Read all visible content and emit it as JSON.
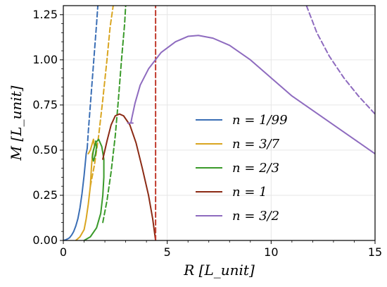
{
  "chart_data": {
    "type": "line",
    "xlabel": "R [L_unit]",
    "ylabel": "M [L_unit]",
    "xlim": [
      0,
      15
    ],
    "ylim": [
      0,
      1.3
    ],
    "xticks": [
      0,
      5,
      10,
      15
    ],
    "xtick_labels": [
      "0",
      "5",
      "10",
      "15"
    ],
    "yticks": [
      0.0,
      0.25,
      0.5,
      0.75,
      1.0,
      1.25
    ],
    "ytick_labels": [
      "0.00",
      "0.25",
      "0.50",
      "0.75",
      "1.00",
      "1.25"
    ],
    "grid": true,
    "legend_position": "center-right",
    "series": [
      {
        "name": "n = 1/99",
        "color": "#3a6eb5",
        "style": "solid",
        "points": [
          [
            0.0,
            0.0
          ],
          [
            0.1,
            0.003
          ],
          [
            0.2,
            0.008
          ],
          [
            0.3,
            0.015
          ],
          [
            0.4,
            0.03
          ],
          [
            0.5,
            0.05
          ],
          [
            0.6,
            0.08
          ],
          [
            0.7,
            0.12
          ],
          [
            0.8,
            0.18
          ],
          [
            0.9,
            0.26
          ],
          [
            1.0,
            0.36
          ],
          [
            1.05,
            0.42
          ],
          [
            1.1,
            0.48
          ],
          [
            1.15,
            0.51
          ]
        ]
      },
      {
        "name": "n = 1/99",
        "color": "#3a6eb5",
        "style": "dashed",
        "points": [
          [
            1.15,
            0.51
          ],
          [
            1.2,
            0.6
          ],
          [
            1.3,
            0.75
          ],
          [
            1.4,
            0.9
          ],
          [
            1.5,
            1.05
          ],
          [
            1.6,
            1.2
          ],
          [
            1.66,
            1.3
          ]
        ]
      },
      {
        "name": "n = 3/7",
        "color": "#d9a520",
        "style": "solid",
        "points": [
          [
            0.6,
            0.0
          ],
          [
            0.8,
            0.02
          ],
          [
            1.0,
            0.06
          ],
          [
            1.1,
            0.12
          ],
          [
            1.2,
            0.2
          ],
          [
            1.3,
            0.3
          ],
          [
            1.35,
            0.4
          ],
          [
            1.4,
            0.48
          ],
          [
            1.5,
            0.52
          ],
          [
            1.45,
            0.56
          ],
          [
            1.3,
            0.5
          ],
          [
            1.2,
            0.48
          ]
        ]
      },
      {
        "name": "n = 3/7",
        "color": "#d9a520",
        "style": "dashed",
        "points": [
          [
            1.3,
            0.3
          ],
          [
            1.5,
            0.42
          ],
          [
            1.7,
            0.58
          ],
          [
            1.9,
            0.78
          ],
          [
            2.1,
            1.0
          ],
          [
            2.25,
            1.18
          ],
          [
            2.4,
            1.3
          ]
        ]
      },
      {
        "name": "n = 2/3",
        "color": "#3a9a2a",
        "style": "solid",
        "points": [
          [
            1.0,
            0.0
          ],
          [
            1.3,
            0.02
          ],
          [
            1.6,
            0.07
          ],
          [
            1.8,
            0.15
          ],
          [
            1.9,
            0.25
          ],
          [
            1.95,
            0.35
          ],
          [
            1.95,
            0.45
          ],
          [
            1.85,
            0.52
          ],
          [
            1.7,
            0.56
          ],
          [
            1.55,
            0.54
          ],
          [
            1.45,
            0.5
          ],
          [
            1.4,
            0.46
          ],
          [
            1.45,
            0.44
          ],
          [
            1.55,
            0.48
          ],
          [
            1.6,
            0.52
          ],
          [
            1.55,
            0.55
          ]
        ]
      },
      {
        "name": "n = 2/3",
        "color": "#3a9a2a",
        "style": "dashed",
        "points": [
          [
            1.9,
            0.1
          ],
          [
            2.1,
            0.22
          ],
          [
            2.3,
            0.38
          ],
          [
            2.5,
            0.58
          ],
          [
            2.65,
            0.78
          ],
          [
            2.8,
            1.0
          ],
          [
            2.95,
            1.2
          ],
          [
            3.0,
            1.3
          ]
        ]
      },
      {
        "name": "n = 1",
        "color": "#8b2a14",
        "style": "solid",
        "points": [
          [
            4.44,
            0.0
          ],
          [
            4.3,
            0.12
          ],
          [
            4.1,
            0.25
          ],
          [
            3.8,
            0.4
          ],
          [
            3.5,
            0.54
          ],
          [
            3.2,
            0.64
          ],
          [
            2.9,
            0.69
          ],
          [
            2.7,
            0.7
          ],
          [
            2.5,
            0.69
          ],
          [
            2.3,
            0.64
          ],
          [
            2.1,
            0.55
          ],
          [
            1.9,
            0.45
          ]
        ]
      },
      {
        "name": "n = 1",
        "color": "#c0392b",
        "style": "dashed",
        "points": [
          [
            4.44,
            0.0
          ],
          [
            4.44,
            1.3
          ]
        ]
      },
      {
        "name": "n = 3/2",
        "color": "#8e6bbf",
        "style": "solid",
        "points": [
          [
            3.25,
            0.65
          ],
          [
            3.3,
            0.68
          ],
          [
            3.45,
            0.76
          ],
          [
            3.7,
            0.86
          ],
          [
            4.1,
            0.95
          ],
          [
            4.7,
            1.04
          ],
          [
            5.4,
            1.1
          ],
          [
            6.0,
            1.13
          ],
          [
            6.5,
            1.135
          ],
          [
            7.2,
            1.12
          ],
          [
            8.0,
            1.08
          ],
          [
            9.0,
            1.0
          ],
          [
            10.0,
            0.9
          ],
          [
            11.0,
            0.8
          ],
          [
            12.0,
            0.72
          ],
          [
            13.0,
            0.64
          ],
          [
            14.0,
            0.56
          ],
          [
            15.0,
            0.48
          ]
        ]
      },
      {
        "name": "n = 3/2",
        "color": "#8e6bbf",
        "style": "solid",
        "points": [
          [
            3.1,
            0.65
          ],
          [
            3.35,
            0.65
          ]
        ]
      },
      {
        "name": "n = 3/2",
        "color": "#8e6bbf",
        "style": "dashed",
        "points": [
          [
            11.7,
            1.3
          ],
          [
            12.2,
            1.15
          ],
          [
            12.8,
            1.02
          ],
          [
            13.5,
            0.9
          ],
          [
            14.2,
            0.8
          ],
          [
            15.0,
            0.7
          ]
        ]
      }
    ],
    "legend": [
      {
        "label": "n = 1/99",
        "color": "#3a6eb5"
      },
      {
        "label": "n = 3/7",
        "color": "#d9a520"
      },
      {
        "label": "n = 2/3",
        "color": "#3a9a2a"
      },
      {
        "label": "n = 1",
        "color": "#8b2a14"
      },
      {
        "label": "n = 3/2",
        "color": "#8e6bbf"
      }
    ]
  }
}
